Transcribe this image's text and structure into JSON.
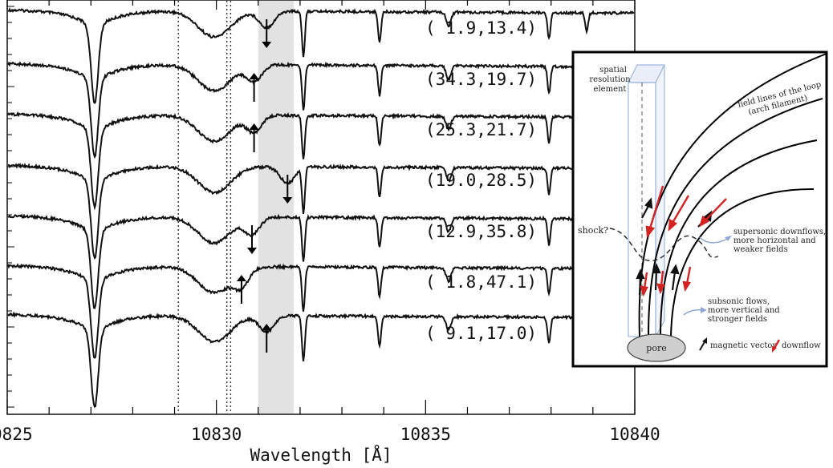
{
  "chart_data": {
    "type": "line",
    "xlabel": "Wavelength [Å]",
    "ylabel": "",
    "xlim": [
      10825,
      10840
    ],
    "x_ticks": [
      10825,
      10830,
      10835,
      10840
    ],
    "grid": false,
    "reference_lines": [
      10829.09,
      10830.25,
      10830.34
    ],
    "shaded_band": [
      10831.0,
      10831.85
    ],
    "series": [
      {
        "label": "( 1.9,13.4)",
        "arrow_x": 10831.2,
        "arrow_dir": "down"
      },
      {
        "label": "(34.3,19.7)",
        "arrow_x": 10830.9,
        "arrow_dir": "up"
      },
      {
        "label": "(25.3,21.7)",
        "arrow_x": 10830.9,
        "arrow_dir": "up"
      },
      {
        "label": "(19.0,28.5)",
        "arrow_x": 10831.7,
        "arrow_dir": "down"
      },
      {
        "label": "(12.9,35.8)",
        "arrow_x": 10830.85,
        "arrow_dir": "down"
      },
      {
        "label": "( 1.8,47.1)",
        "arrow_x": 10830.6,
        "arrow_dir": "up"
      },
      {
        "label": "( 9.1,17.0)",
        "arrow_x": 10831.2,
        "arrow_dir": "up"
      }
    ],
    "absorption_lines": [
      {
        "x": 10827.09,
        "depth": 1.0
      },
      {
        "x": 10829.95,
        "depth": 0.35
      },
      {
        "x": 10832.08,
        "depth": 0.6
      },
      {
        "x": 10833.9,
        "depth": 0.4
      },
      {
        "x": 10835.55,
        "depth": 0.18
      },
      {
        "x": 10837.95,
        "depth": 0.35
      },
      {
        "x": 10838.85,
        "depth": 0.25
      }
    ]
  },
  "inset": {
    "spatial_resolution": [
      "spatial",
      "resolution",
      "element"
    ],
    "field_lines": [
      "field lines of the loop",
      "(arch filament)"
    ],
    "shock": "shock?",
    "supersonic": [
      "supersonic downflows,",
      "more horizontal and",
      "weaker fields"
    ],
    "subsonic": [
      "subsonic flows,",
      "more vertical and",
      "stronger fields"
    ],
    "pore": "pore",
    "magnetic_vector": "magnetic vector",
    "downflow": "downflow",
    "colors": {
      "magnetic": "#111111",
      "downflow": "#d22222",
      "resolution_box": "#9fb7dc",
      "curved_arrow": "#8fa8d8",
      "pore": "#cfcfcf"
    }
  }
}
